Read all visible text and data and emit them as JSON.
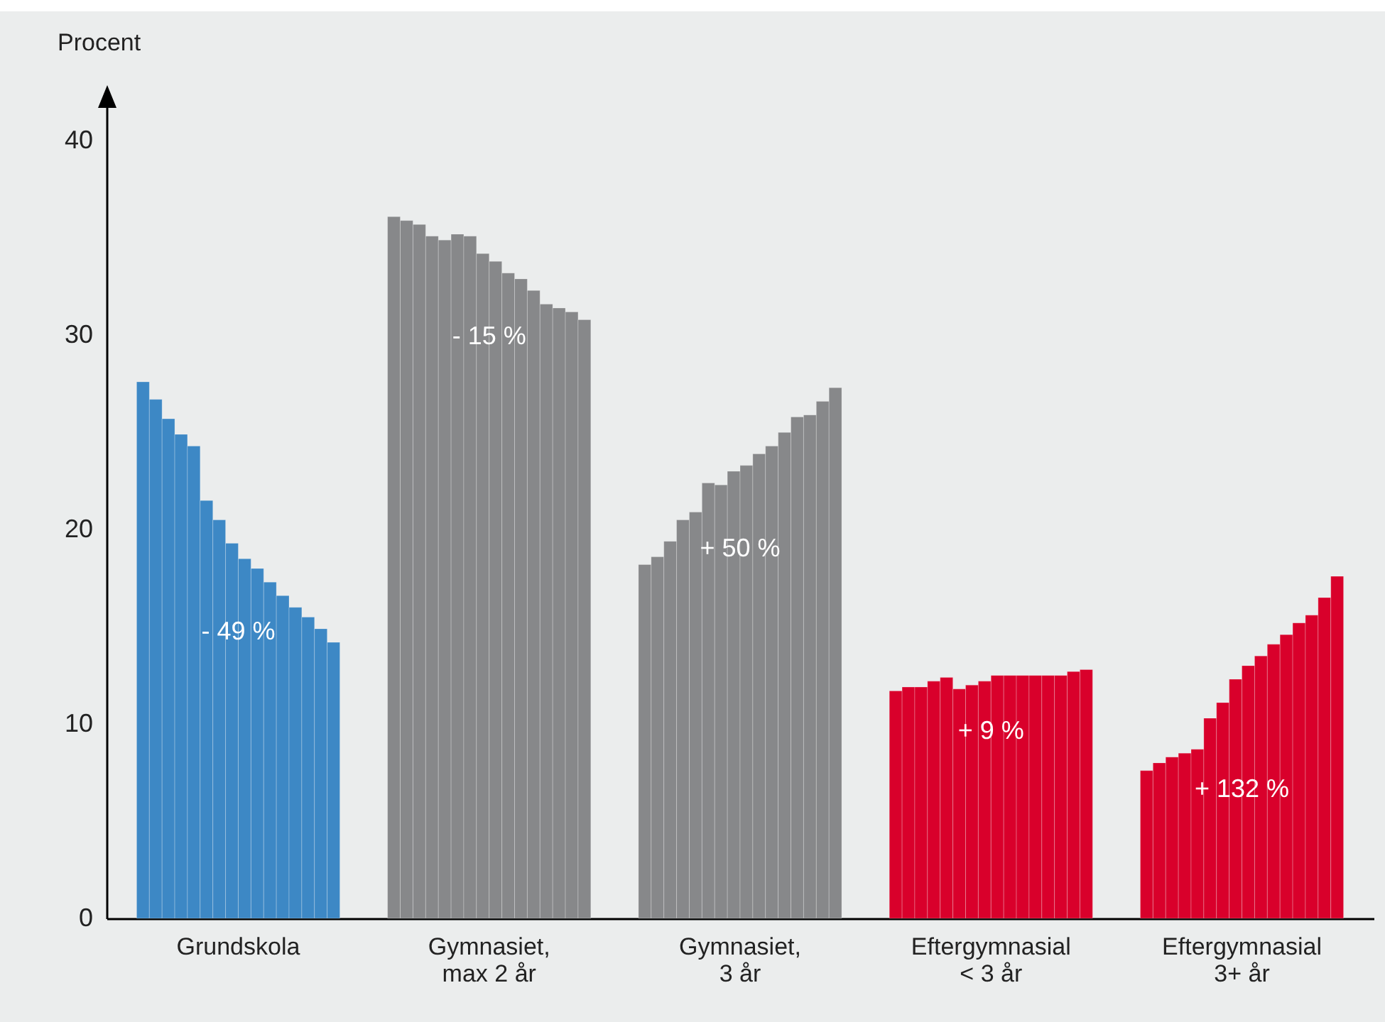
{
  "chart_data": {
    "type": "bar",
    "ylabel": "Procent",
    "categories": [
      "Grundskola",
      "Gymnasiet,\nmax 2 år",
      "Gymnasiet,\n3 år",
      "Eftergymnasial\n< 3 år",
      "Eftergymnasial\n3+ år"
    ],
    "ylim": [
      0,
      42.5
    ],
    "yticks": [
      0,
      10,
      20,
      30,
      40
    ],
    "grid": false,
    "series": [
      {
        "colors": [
          "#3d88c5",
          "#87888a",
          "#87888a",
          "#d9002b",
          "#d9002b"
        ],
        "values": [
          27.6,
          36.1,
          18.2,
          11.7,
          7.6
        ]
      },
      {
        "colors": [
          "#3d88c5",
          "#87888a",
          "#87888a",
          "#d9002b",
          "#d9002b"
        ],
        "values": [
          26.7,
          35.9,
          18.6,
          11.9,
          8.0
        ]
      },
      {
        "colors": [
          "#3d88c5",
          "#87888a",
          "#87888a",
          "#d9002b",
          "#d9002b"
        ],
        "values": [
          25.7,
          35.7,
          19.4,
          11.9,
          8.3
        ]
      },
      {
        "colors": [
          "#3d88c5",
          "#87888a",
          "#87888a",
          "#d9002b",
          "#d9002b"
        ],
        "values": [
          24.9,
          35.1,
          20.5,
          12.2,
          8.5
        ]
      },
      {
        "colors": [
          "#3d88c5",
          "#87888a",
          "#87888a",
          "#d9002b",
          "#d9002b"
        ],
        "values": [
          24.3,
          34.9,
          20.9,
          12.4,
          8.7
        ]
      },
      {
        "colors": [
          "#3d88c5",
          "#87888a",
          "#87888a",
          "#d9002b",
          "#d9002b"
        ],
        "values": [
          21.5,
          35.2,
          22.4,
          11.8,
          10.3
        ]
      },
      {
        "colors": [
          "#3d88c5",
          "#87888a",
          "#87888a",
          "#d9002b",
          "#d9002b"
        ],
        "values": [
          20.5,
          35.1,
          22.3,
          12.0,
          11.1
        ]
      },
      {
        "colors": [
          "#3d88c5",
          "#87888a",
          "#87888a",
          "#d9002b",
          "#d9002b"
        ],
        "values": [
          19.3,
          34.2,
          23.0,
          12.2,
          12.3
        ]
      },
      {
        "colors": [
          "#3d88c5",
          "#87888a",
          "#87888a",
          "#d9002b",
          "#d9002b"
        ],
        "values": [
          18.5,
          33.8,
          23.3,
          12.5,
          13.0
        ]
      },
      {
        "colors": [
          "#3d88c5",
          "#87888a",
          "#87888a",
          "#d9002b",
          "#d9002b"
        ],
        "values": [
          18.0,
          33.2,
          23.9,
          12.5,
          13.5
        ]
      },
      {
        "colors": [
          "#3d88c5",
          "#87888a",
          "#87888a",
          "#d9002b",
          "#d9002b"
        ],
        "values": [
          17.3,
          32.9,
          24.3,
          12.5,
          14.1
        ]
      },
      {
        "colors": [
          "#3d88c5",
          "#87888a",
          "#87888a",
          "#d9002b",
          "#d9002b"
        ],
        "values": [
          16.6,
          32.3,
          25.0,
          12.5,
          14.6
        ]
      },
      {
        "colors": [
          "#3d88c5",
          "#87888a",
          "#87888a",
          "#d9002b",
          "#d9002b"
        ],
        "values": [
          16.0,
          31.6,
          25.8,
          12.5,
          15.2
        ]
      },
      {
        "colors": [
          "#3d88c5",
          "#87888a",
          "#87888a",
          "#d9002b",
          "#d9002b"
        ],
        "values": [
          15.5,
          31.4,
          25.9,
          12.5,
          15.6
        ]
      },
      {
        "colors": [
          "#3d88c5",
          "#87888a",
          "#87888a",
          "#d9002b",
          "#d9002b"
        ],
        "values": [
          14.9,
          31.2,
          26.6,
          12.7,
          16.5
        ]
      },
      {
        "colors": [
          "#3d88c5",
          "#87888a",
          "#87888a",
          "#d9002b",
          "#d9002b"
        ],
        "values": [
          14.2,
          30.8,
          27.3,
          12.8,
          17.6
        ]
      }
    ],
    "annotations": [
      {
        "text": "- 49 %",
        "x": "Grundskola",
        "y": 14.7
      },
      {
        "text": "- 15 %",
        "x": "Gymnasiet,\nmax 2 år",
        "y": 29.9
      },
      {
        "text": "+ 50 %",
        "x": "Gymnasiet,\n3 år",
        "y": 19.0
      },
      {
        "text": "+ 9 %",
        "x": "Eftergymnasial\n< 3 år",
        "y": 9.6
      },
      {
        "text": "+ 132 %",
        "x": "Eftergymnasial\n3+ år",
        "y": 6.6
      }
    ]
  }
}
